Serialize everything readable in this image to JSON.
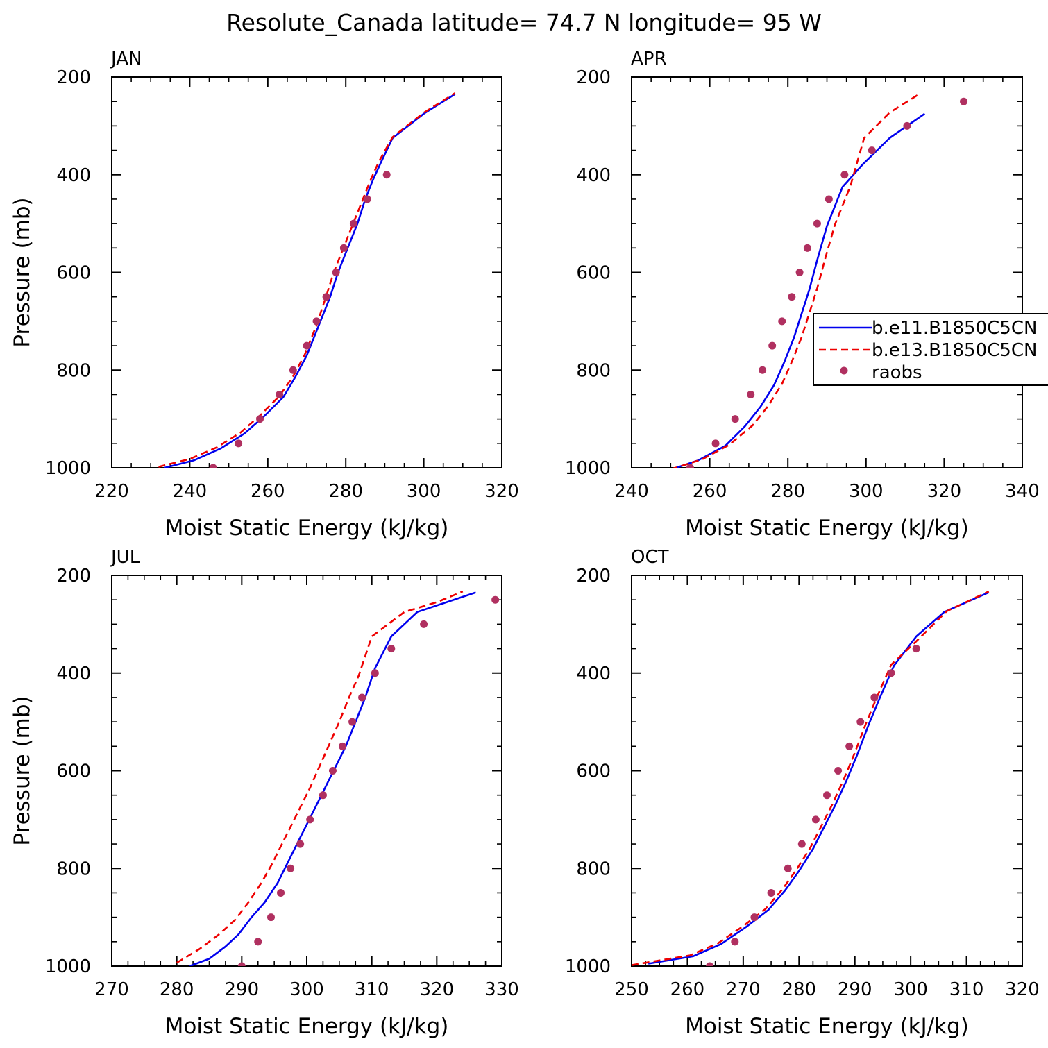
{
  "title": "Resolute_Canada  latitude= 74.7 N longitude= 95 W",
  "legend_labels": [
    "b.e11.B1850C5CN",
    "b.e13.B1850C5CN",
    "raobs"
  ],
  "colors": {
    "series1": "#0000ee",
    "series2": "#ee0000",
    "raobs": "#b03060"
  },
  "chart_data": [
    {
      "type": "line",
      "panel_label": "JAN",
      "xlabel": "Moist Static Energy (kJ/kg)",
      "ylabel": "Pressure (mb)",
      "xlim": [
        220,
        320
      ],
      "ylim": [
        1000,
        200
      ],
      "xticks": [
        220,
        240,
        260,
        280,
        300,
        320
      ],
      "yticks": [
        200,
        400,
        600,
        800,
        1000
      ],
      "series": [
        {
          "name": "b.e11.B1850C5CN",
          "style": "solid",
          "x": [
            233.5,
            241,
            248,
            254,
            259,
            264,
            267,
            270,
            273,
            276,
            278,
            280.5,
            283,
            285,
            287,
            289,
            292,
            300,
            308
          ],
          "y": [
            1000,
            985,
            960,
            930,
            895,
            855,
            815,
            770,
            710,
            650,
            600,
            550,
            500,
            450,
            410,
            375,
            325,
            275,
            235
          ]
        },
        {
          "name": "b.e13.B1850C5CN",
          "style": "dashed",
          "x": [
            232,
            240,
            247,
            253,
            258,
            263,
            266.5,
            269.5,
            272.5,
            275,
            277,
            279.5,
            282,
            284.5,
            286.5,
            288.5,
            292,
            300,
            308
          ],
          "y": [
            998,
            982,
            958,
            928,
            893,
            853,
            813,
            768,
            708,
            648,
            598,
            548,
            498,
            448,
            408,
            373,
            323,
            273,
            233
          ]
        },
        {
          "name": "raobs",
          "style": "markers",
          "x": [
            246,
            252.5,
            258,
            263,
            266.5,
            270,
            272.5,
            275,
            277.5,
            279.5,
            282,
            285.5,
            290.5
          ],
          "y": [
            1000,
            950,
            900,
            850,
            800,
            750,
            700,
            650,
            600,
            550,
            500,
            450,
            400
          ]
        }
      ]
    },
    {
      "type": "line",
      "panel_label": "APR",
      "xlabel": "Moist Static Energy (kJ/kg)",
      "ylabel": "",
      "xlim": [
        240,
        340
      ],
      "ylim": [
        1000,
        200
      ],
      "xticks": [
        240,
        260,
        280,
        300,
        320,
        340
      ],
      "yticks": [
        200,
        400,
        600,
        800,
        1000
      ],
      "legend": "right",
      "series": [
        {
          "name": "b.e11.B1850C5CN",
          "style": "solid",
          "x": [
            249.5,
            257,
            264,
            269,
            273,
            276.5,
            279,
            281.5,
            283.5,
            285.5,
            287.5,
            290,
            294,
            299,
            306,
            315
          ],
          "y": [
            1005,
            985,
            955,
            915,
            875,
            830,
            785,
            735,
            685,
            635,
            575,
            505,
            425,
            380,
            325,
            275
          ]
        },
        {
          "name": "b.e13.B1850C5CN",
          "style": "dashed",
          "x": [
            250,
            258,
            265,
            271,
            275,
            278.5,
            281,
            283.5,
            285.5,
            287.5,
            289.5,
            292,
            296,
            299.5,
            306,
            314
          ],
          "y": [
            1003,
            983,
            953,
            913,
            873,
            828,
            783,
            733,
            683,
            633,
            573,
            503,
            423,
            325,
            273,
            233
          ]
        },
        {
          "name": "raobs",
          "style": "markers",
          "x": [
            255,
            261.5,
            266.5,
            270.5,
            273.5,
            276,
            278.5,
            281,
            283,
            285,
            287.5,
            290.5,
            294.5,
            301.5,
            310.5,
            325
          ],
          "y": [
            1000,
            950,
            900,
            850,
            800,
            750,
            700,
            650,
            600,
            550,
            500,
            450,
            400,
            350,
            300,
            250
          ]
        }
      ]
    },
    {
      "type": "line",
      "panel_label": "JUL",
      "xlabel": "Moist Static Energy (kJ/kg)",
      "ylabel": "Pressure (mb)",
      "xlim": [
        270,
        330
      ],
      "ylim": [
        1000,
        200
      ],
      "xticks": [
        270,
        280,
        290,
        300,
        310,
        320,
        330
      ],
      "yticks": [
        200,
        400,
        600,
        800,
        1000
      ],
      "series": [
        {
          "name": "b.e11.B1850C5CN",
          "style": "solid",
          "x": [
            282,
            285,
            287.5,
            289.5,
            291.5,
            293.5,
            295.5,
            297,
            298.5,
            300,
            301.5,
            303,
            304.5,
            306,
            307.5,
            309,
            310.5,
            313,
            317,
            326
          ],
          "y": [
            1000,
            985,
            960,
            935,
            900,
            870,
            830,
            790,
            750,
            710,
            670,
            630,
            590,
            550,
            500,
            450,
            390,
            325,
            275,
            235
          ]
        },
        {
          "name": "b.e13.B1850C5CN",
          "style": "dashed",
          "x": [
            280,
            283.5,
            286.5,
            289,
            291,
            293,
            294.5,
            296,
            297.5,
            299,
            300.5,
            302,
            303.5,
            305,
            306.5,
            308,
            310,
            315,
            320,
            324
          ],
          "y": [
            993,
            965,
            935,
            905,
            870,
            830,
            795,
            755,
            715,
            675,
            635,
            590,
            545,
            500,
            450,
            405,
            325,
            275,
            255,
            233
          ]
        },
        {
          "name": "raobs",
          "style": "markers",
          "x": [
            290,
            292.5,
            294.5,
            296,
            297.5,
            299,
            300.5,
            302.5,
            304,
            305.5,
            307,
            308.5,
            310.5,
            313,
            318,
            329
          ],
          "y": [
            1000,
            950,
            900,
            850,
            800,
            750,
            700,
            650,
            600,
            550,
            500,
            450,
            400,
            350,
            300,
            250
          ]
        }
      ]
    },
    {
      "type": "line",
      "panel_label": "OCT",
      "xlabel": "Moist Static Energy (kJ/kg)",
      "ylabel": "",
      "xlim": [
        250,
        320
      ],
      "ylim": [
        1000,
        200
      ],
      "xticks": [
        250,
        260,
        270,
        280,
        290,
        300,
        310,
        320
      ],
      "yticks": [
        200,
        400,
        600,
        800,
        1000
      ],
      "series": [
        {
          "name": "b.e11.B1850C5CN",
          "style": "solid",
          "x": [
            253,
            261,
            266,
            270.5,
            274.5,
            277.5,
            280,
            282.5,
            284.5,
            286.5,
            288.5,
            290.5,
            292.5,
            294.5,
            297,
            301,
            306,
            314
          ],
          "y": [
            995,
            980,
            955,
            920,
            885,
            845,
            805,
            760,
            715,
            670,
            620,
            565,
            505,
            450,
            385,
            325,
            275,
            235
          ]
        },
        {
          "name": "b.e13.B1850C5CN",
          "style": "dashed",
          "x": [
            250,
            260.5,
            265.5,
            270,
            274,
            277,
            279.5,
            282,
            284,
            286,
            288,
            290,
            292,
            294,
            296.5,
            301,
            306.5,
            314
          ],
          "y": [
            998,
            978,
            953,
            918,
            883,
            843,
            803,
            758,
            713,
            668,
            618,
            563,
            503,
            448,
            383,
            335,
            273,
            233
          ]
        },
        {
          "name": "raobs",
          "style": "markers",
          "x": [
            264,
            268.5,
            272,
            275,
            278,
            280.5,
            283,
            285,
            287,
            289,
            291,
            293.5,
            296.5,
            301
          ],
          "y": [
            1000,
            950,
            900,
            850,
            800,
            750,
            700,
            650,
            600,
            550,
            500,
            450,
            400,
            350
          ]
        }
      ]
    }
  ]
}
